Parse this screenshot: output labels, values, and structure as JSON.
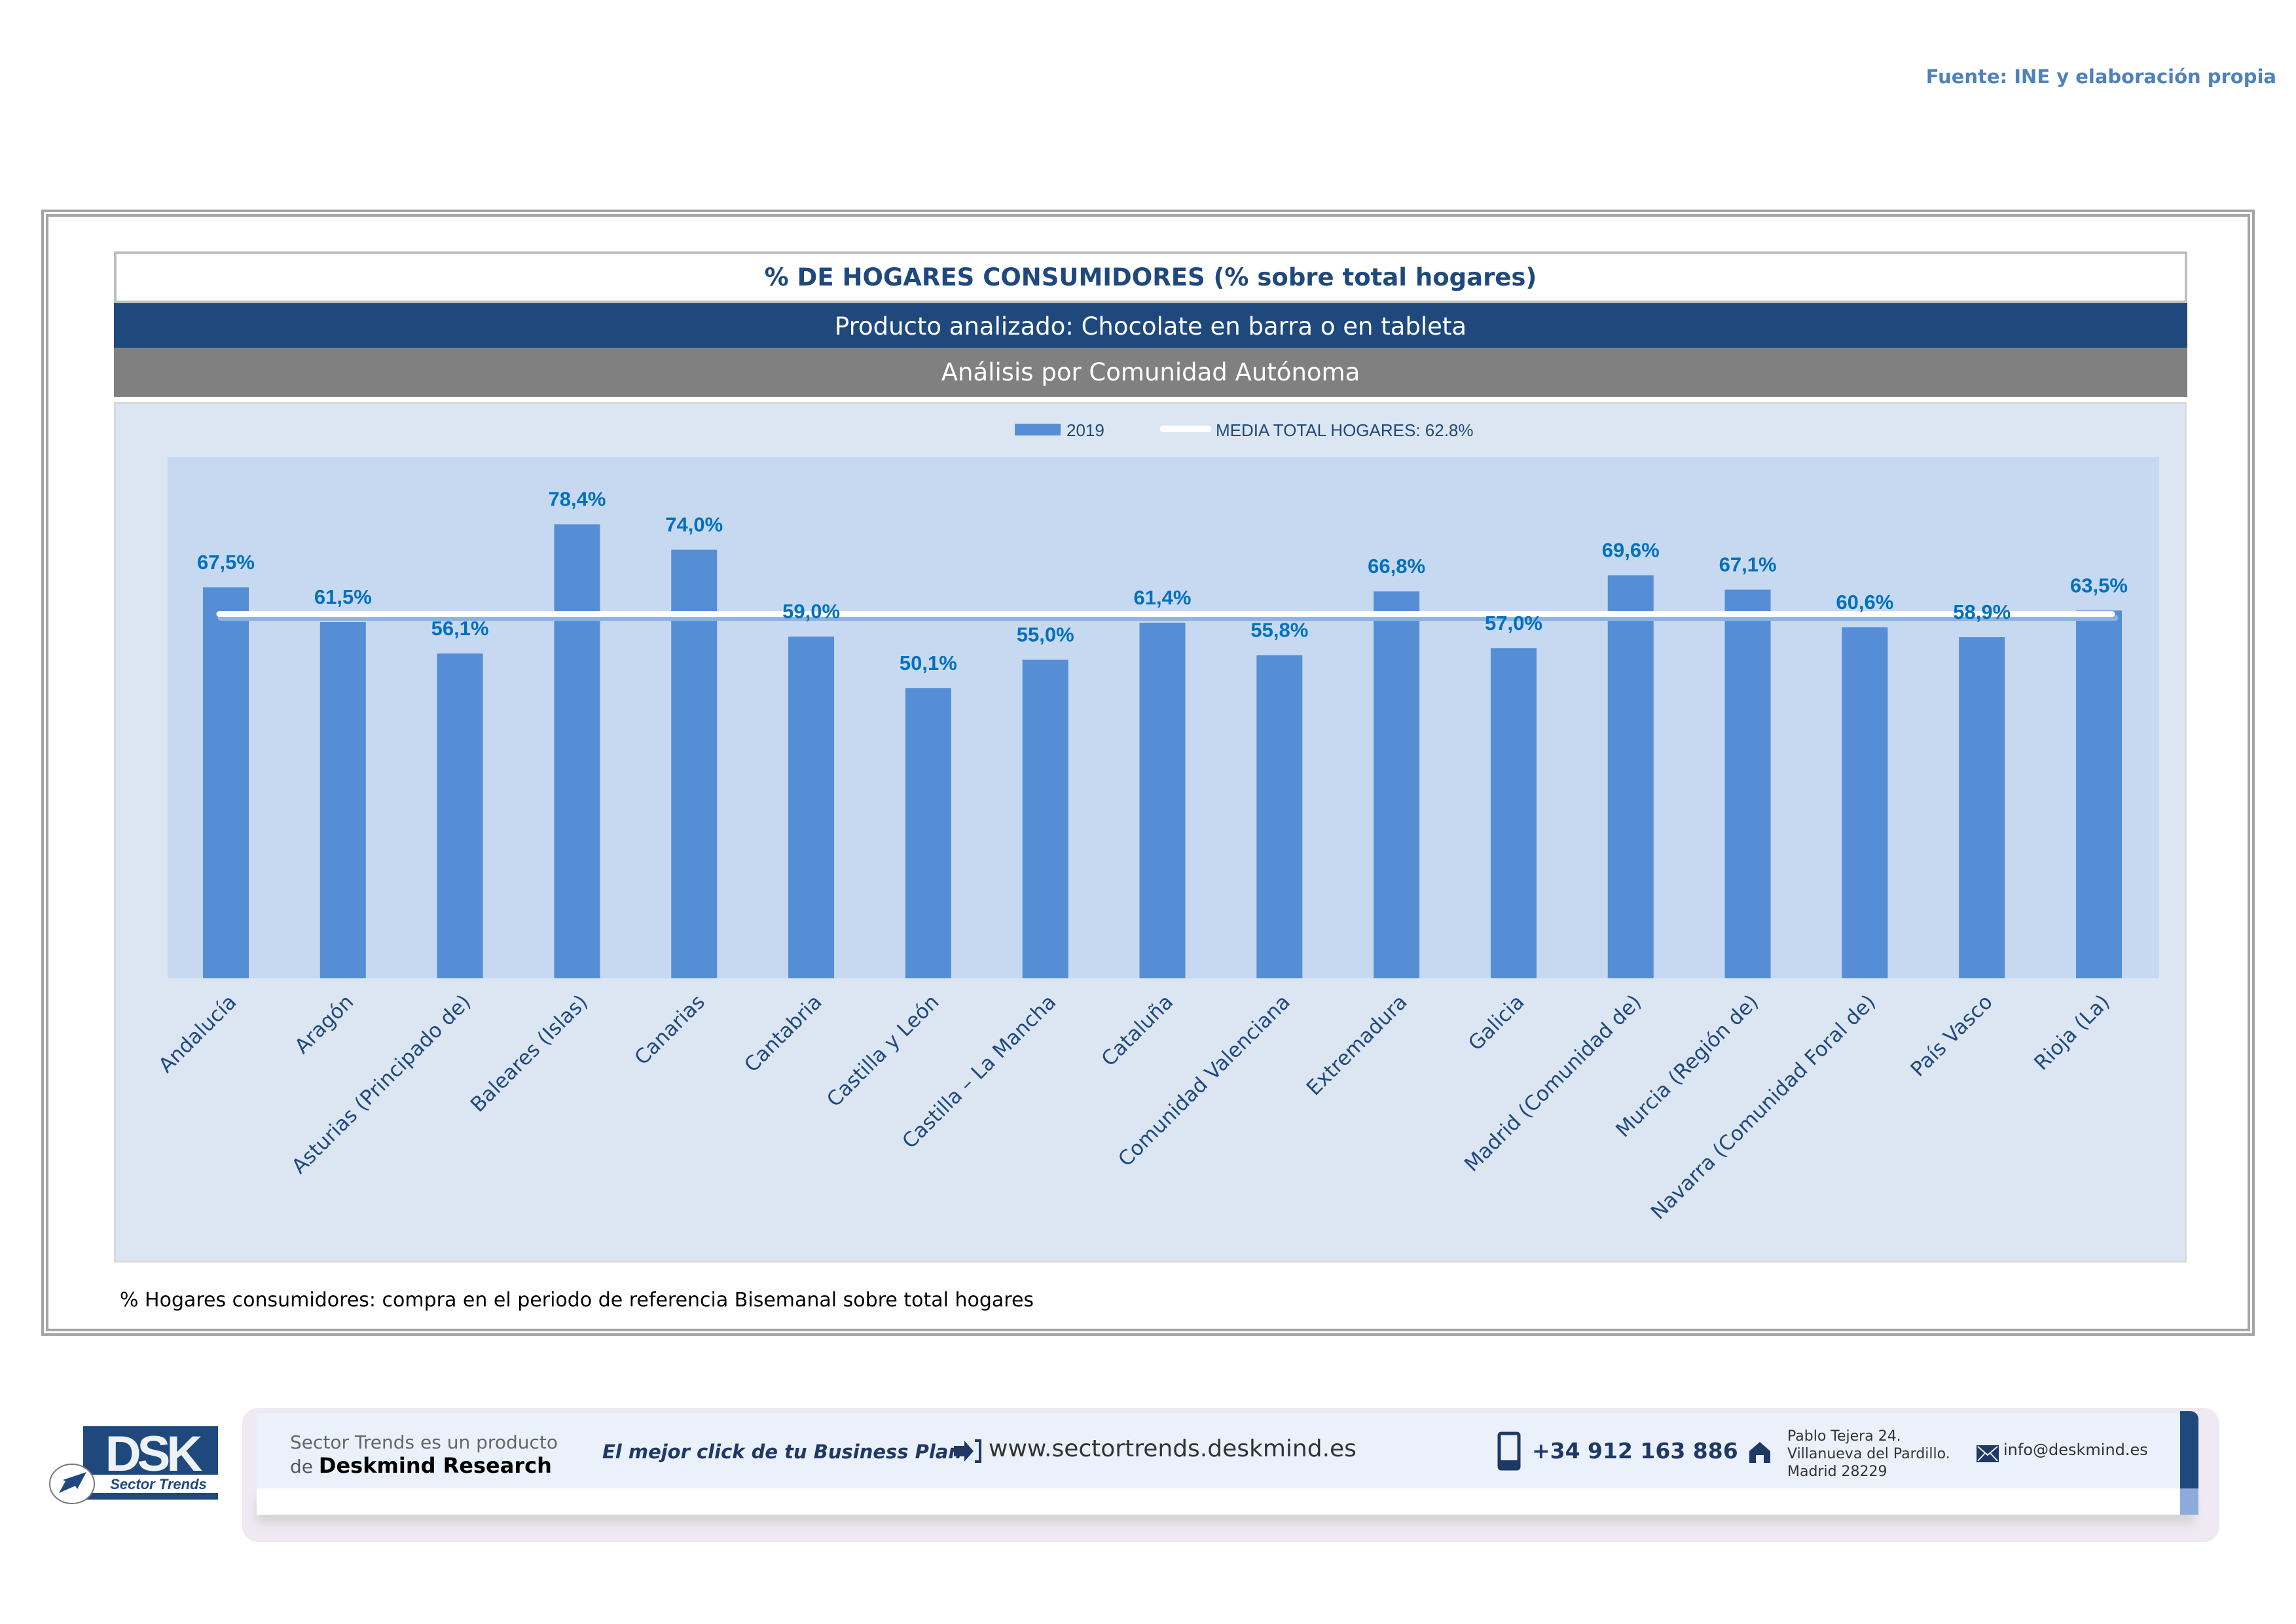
{
  "source": "Fuente: INE y elaboración propia",
  "header": {
    "title": "% DE HOGARES CONSUMIDORES (% sobre total hogares)",
    "product": "Producto analizado: Chocolate en barra o en tableta",
    "analysis": "Análisis por Comunidad Autónoma"
  },
  "note": "% Hogares consumidores: compra en el periodo de referencia Bisemanal sobre total hogares",
  "colors": {
    "bar": "#558ed5",
    "label": "#0070c0",
    "axis_text": "#1f497d",
    "avg_line": "#ffffff",
    "plot_bg": "#c6d9f0",
    "chart_bg": "#dce6f2",
    "navy": "#1f497d",
    "gray": "#808080"
  },
  "chart_data": {
    "type": "bar",
    "title": "% DE HOGARES CONSUMIDORES (% sobre total hogares)",
    "xlabel": "",
    "ylabel": "",
    "ylim": [
      0,
      90
    ],
    "grid": false,
    "legend_position": "top-center",
    "legend": [
      {
        "type": "bar",
        "label": "2019"
      },
      {
        "type": "line",
        "label": "MEDIA TOTAL  HOGARES:  62.8%"
      }
    ],
    "categories": [
      "Andalucía",
      "Aragón",
      "Asturias (Principado de)",
      "Baleares (Islas)",
      "Canarias",
      "Cantabria",
      "Castilla y León",
      "Castilla – La Mancha",
      "Cataluña",
      "Comunidad Valenciana",
      "Extremadura",
      "Galicia",
      "Madrid (Comunidad de)",
      "Murcia (Región de)",
      "Navarra (Comunidad Foral de)",
      "País Vasco",
      "Rioja (La)"
    ],
    "series": [
      {
        "name": "2019",
        "values": [
          67.5,
          61.5,
          56.1,
          78.4,
          74.0,
          59.0,
          50.1,
          55.0,
          61.4,
          55.8,
          66.8,
          57.0,
          69.6,
          67.1,
          60.6,
          58.9,
          63.5
        ],
        "labels": [
          "67,5%",
          "61,5%",
          "56,1%",
          "78,4%",
          "74,0%",
          "59,0%",
          "50,1%",
          "55,0%",
          "61,4%",
          "55,8%",
          "66,8%",
          "57,0%",
          "69,6%",
          "67,1%",
          "60,6%",
          "58,9%",
          "63,5%"
        ]
      }
    ],
    "reference_line": {
      "name": "MEDIA TOTAL HOGARES",
      "value": 62.8
    }
  },
  "footer": {
    "logo_main": "DSK",
    "logo_sub": "Sector Trends",
    "product_line1": "Sector Trends es un producto",
    "product_line2_prefix": "de",
    "product_line2_brand": "Deskmind Research",
    "slogan": "El mejor click de tu Business Plan",
    "website": "www.sectortrends.deskmind.es",
    "phone": "+34 912 163 886",
    "address_line1": "Pablo Tejera 24.",
    "address_line2": "Villanueva del Pardillo.",
    "address_line3": "Madrid 28229",
    "email": "info@deskmind.es"
  }
}
